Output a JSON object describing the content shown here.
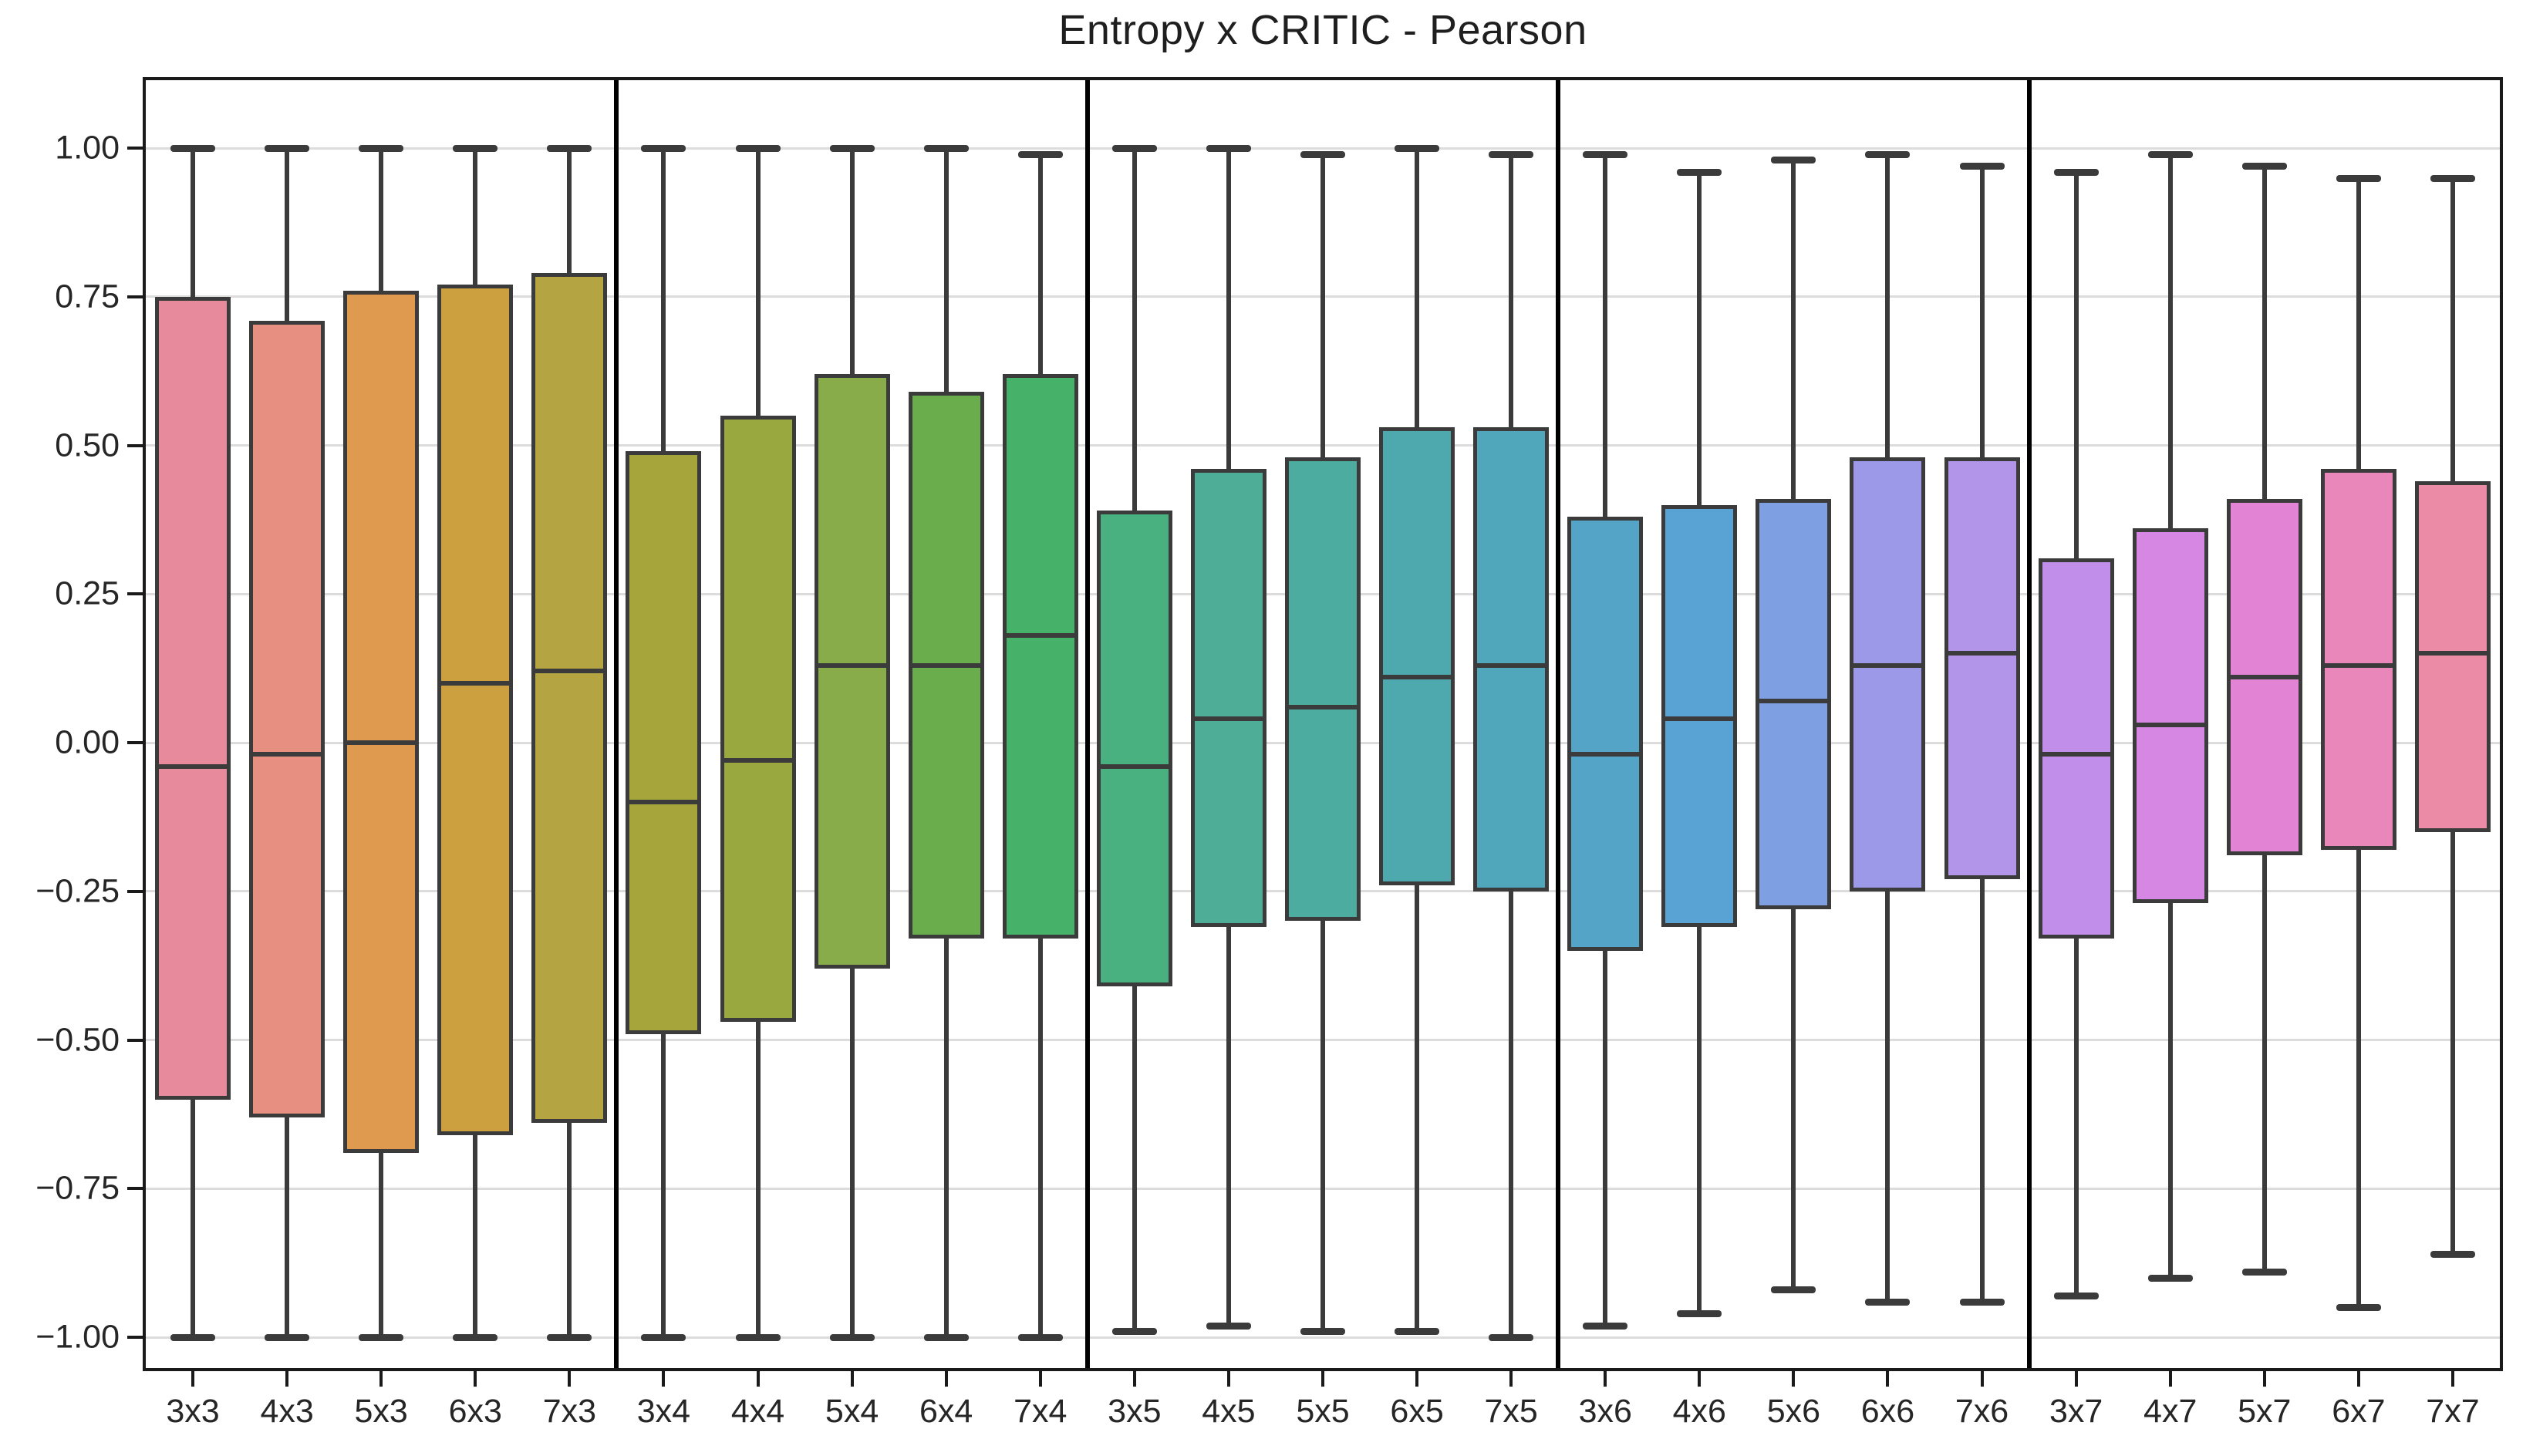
{
  "title": "Entropy x CRITIC - Pearson",
  "chart_data": {
    "type": "box",
    "title": "Entropy x CRITIC - Pearson",
    "xlabel": "",
    "ylabel": "",
    "ylim": [
      -1.12,
      1.14
    ],
    "grid": "horizontal",
    "legend": "none",
    "group_size": 5,
    "yticks": [
      1.0,
      0.75,
      0.5,
      0.25,
      0.0,
      -0.25,
      -0.5,
      -0.75,
      -1.0
    ],
    "ytick_labels": [
      "1.00",
      "0.75",
      "0.50",
      "0.25",
      "0.00",
      "−0.25",
      "−0.50",
      "−0.75",
      "−1.00"
    ],
    "categories": [
      "3x3",
      "4x3",
      "5x3",
      "6x3",
      "7x3",
      "3x4",
      "4x4",
      "5x4",
      "6x4",
      "7x4",
      "3x5",
      "4x5",
      "5x5",
      "6x5",
      "7x5",
      "3x6",
      "4x6",
      "5x6",
      "6x6",
      "7x6",
      "3x7",
      "4x7",
      "5x7",
      "6x7",
      "7x7"
    ],
    "boxes": [
      {
        "label": "3x3",
        "color": "#e78a9b",
        "whislo": -1.0,
        "q1": -0.6,
        "med": -0.04,
        "q3": 0.75,
        "whishi": 1.0
      },
      {
        "label": "4x3",
        "color": "#e78f80",
        "whislo": -1.0,
        "q1": -0.63,
        "med": -0.02,
        "q3": 0.71,
        "whishi": 1.0
      },
      {
        "label": "5x3",
        "color": "#df9a50",
        "whislo": -1.0,
        "q1": -0.69,
        "med": 0.0,
        "q3": 0.76,
        "whishi": 1.0
      },
      {
        "label": "6x3",
        "color": "#cda03f",
        "whislo": -1.0,
        "q1": -0.66,
        "med": 0.1,
        "q3": 0.77,
        "whishi": 1.0
      },
      {
        "label": "7x3",
        "color": "#b5a442",
        "whislo": -1.0,
        "q1": -0.64,
        "med": 0.12,
        "q3": 0.79,
        "whishi": 1.0
      },
      {
        "label": "3x4",
        "color": "#a5a53c",
        "whislo": -1.0,
        "q1": -0.49,
        "med": -0.1,
        "q3": 0.49,
        "whishi": 1.0
      },
      {
        "label": "4x4",
        "color": "#9aa93f",
        "whislo": -1.0,
        "q1": -0.47,
        "med": -0.03,
        "q3": 0.55,
        "whishi": 1.0
      },
      {
        "label": "5x4",
        "color": "#87ac49",
        "whislo": -1.0,
        "q1": -0.38,
        "med": 0.13,
        "q3": 0.62,
        "whishi": 1.0
      },
      {
        "label": "6x4",
        "color": "#69ad4d",
        "whislo": -1.0,
        "q1": -0.33,
        "med": 0.13,
        "q3": 0.59,
        "whishi": 1.0
      },
      {
        "label": "7x4",
        "color": "#46b168",
        "whislo": -1.0,
        "q1": -0.33,
        "med": 0.18,
        "q3": 0.62,
        "whishi": 0.99
      },
      {
        "label": "3x5",
        "color": "#49b080",
        "whislo": -0.99,
        "q1": -0.41,
        "med": -0.04,
        "q3": 0.39,
        "whishi": 1.0
      },
      {
        "label": "4x5",
        "color": "#4dad96",
        "whislo": -0.98,
        "q1": -0.31,
        "med": 0.04,
        "q3": 0.46,
        "whishi": 1.0
      },
      {
        "label": "5x5",
        "color": "#4daca0",
        "whislo": -0.99,
        "q1": -0.3,
        "med": 0.06,
        "q3": 0.48,
        "whishi": 0.99
      },
      {
        "label": "6x5",
        "color": "#4ea9ae",
        "whislo": -0.99,
        "q1": -0.24,
        "med": 0.11,
        "q3": 0.53,
        "whishi": 1.0
      },
      {
        "label": "7x5",
        "color": "#50a6bb",
        "whislo": -1.0,
        "q1": -0.25,
        "med": 0.13,
        "q3": 0.53,
        "whishi": 0.99
      },
      {
        "label": "3x6",
        "color": "#54a4c8",
        "whislo": -0.98,
        "q1": -0.35,
        "med": -0.02,
        "q3": 0.38,
        "whishi": 0.99
      },
      {
        "label": "4x6",
        "color": "#58a2d4",
        "whislo": -0.96,
        "q1": -0.31,
        "med": 0.04,
        "q3": 0.4,
        "whishi": 0.96
      },
      {
        "label": "5x6",
        "color": "#7ea0e2",
        "whislo": -0.92,
        "q1": -0.28,
        "med": 0.07,
        "q3": 0.41,
        "whishi": 0.98
      },
      {
        "label": "6x6",
        "color": "#9c9ae8",
        "whislo": -0.94,
        "q1": -0.25,
        "med": 0.13,
        "q3": 0.48,
        "whishi": 0.99
      },
      {
        "label": "7x6",
        "color": "#b295e8",
        "whislo": -0.94,
        "q1": -0.23,
        "med": 0.15,
        "q3": 0.48,
        "whishi": 0.97
      },
      {
        "label": "3x7",
        "color": "#c18fe9",
        "whislo": -0.93,
        "q1": -0.33,
        "med": -0.02,
        "q3": 0.31,
        "whishi": 0.96
      },
      {
        "label": "4x7",
        "color": "#d687e4",
        "whislo": -0.9,
        "q1": -0.27,
        "med": 0.03,
        "q3": 0.36,
        "whishi": 0.99
      },
      {
        "label": "5x7",
        "color": "#e383d4",
        "whislo": -0.89,
        "q1": -0.19,
        "med": 0.11,
        "q3": 0.41,
        "whishi": 0.97
      },
      {
        "label": "6x7",
        "color": "#e987bb",
        "whislo": -0.95,
        "q1": -0.18,
        "med": 0.13,
        "q3": 0.46,
        "whishi": 0.95
      },
      {
        "label": "7x7",
        "color": "#eb8ba5",
        "whislo": -0.86,
        "q1": -0.15,
        "med": 0.15,
        "q3": 0.44,
        "whishi": 0.95
      }
    ],
    "colors": {
      "box_edge": "#3b3b3b",
      "median": "#3b3b3b",
      "whisker": "#3b3b3b",
      "grid": "#dcdcdc",
      "spine": "#1a1a1a",
      "group_separator": "#000000",
      "tick_text": "#262626",
      "title_text": "#1f1f1f",
      "background": "#ffffff"
    }
  }
}
